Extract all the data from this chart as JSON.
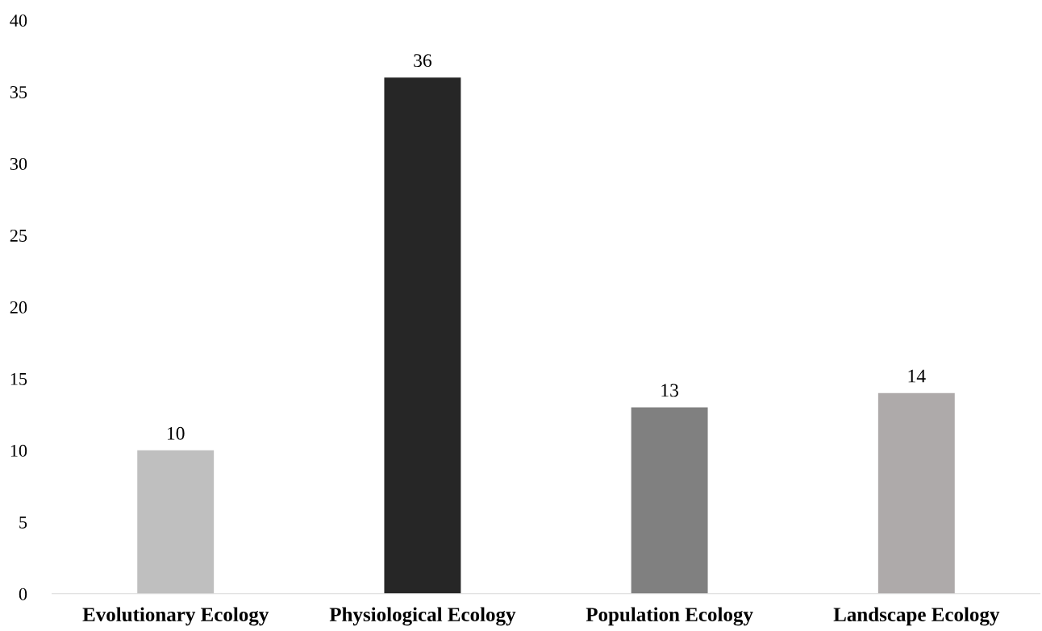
{
  "chart_data": {
    "type": "bar",
    "categories": [
      "Evolutionary Ecology",
      "Physiological Ecology",
      "Population Ecology",
      "Landscape Ecology"
    ],
    "values": [
      10,
      36,
      13,
      14
    ],
    "colors": [
      "#bfbfbf",
      "#262626",
      "#808080",
      "#aeaaaa"
    ],
    "ylim": [
      0,
      40
    ],
    "yticks": [
      0,
      5,
      10,
      15,
      20,
      25,
      30,
      35,
      40
    ],
    "data_labels": true,
    "grid": false,
    "legend": false
  }
}
